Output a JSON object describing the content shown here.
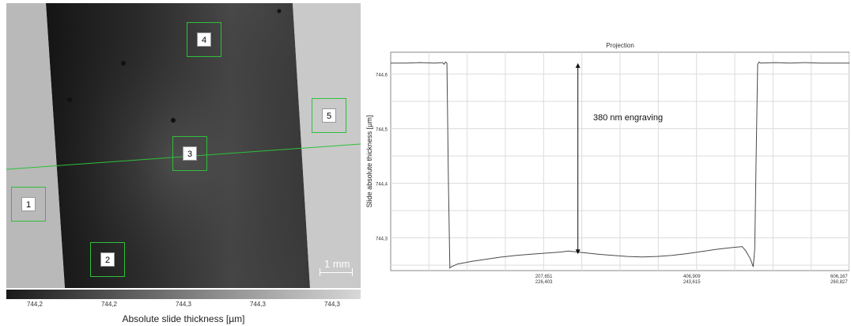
{
  "map": {
    "roi_labels": [
      "1",
      "2",
      "3",
      "4",
      "5"
    ],
    "scalebar_label": "1 mm",
    "colorbar_ticks": [
      "744,2",
      "744,2",
      "744,3",
      "744,3",
      "744,3"
    ],
    "colorbar_title": "Absolute slide thickness [µm]"
  },
  "chart_data": {
    "type": "line",
    "title": "Projection",
    "ylabel": "Slide absolute thickness [µm]",
    "xlabel": "",
    "y_ticks": [
      "744,6",
      "744,5",
      "744,4",
      "744,3"
    ],
    "x_ticks": [
      {
        "line1": "207,651",
        "line2": "226,403"
      },
      {
        "line1": "406,909",
        "line2": "243,615"
      },
      {
        "line1": "606,167",
        "line2": "260,827"
      }
    ],
    "annotation": "380 nm engraving",
    "ylim": [
      744.24,
      744.64
    ],
    "xlim": [
      0,
      620
    ],
    "series": [
      {
        "values": [
          [
            0,
            744.62
          ],
          [
            20,
            744.62
          ],
          [
            40,
            744.621
          ],
          [
            60,
            744.62
          ],
          [
            70,
            744.621
          ],
          [
            72,
            744.618
          ],
          [
            74,
            744.622
          ],
          [
            76,
            744.62
          ],
          [
            78,
            744.4
          ],
          [
            80,
            744.245
          ],
          [
            82,
            744.247
          ],
          [
            90,
            744.252
          ],
          [
            110,
            744.257
          ],
          [
            130,
            744.261
          ],
          [
            150,
            744.265
          ],
          [
            170,
            744.268
          ],
          [
            190,
            744.27
          ],
          [
            210,
            744.272
          ],
          [
            230,
            744.274
          ],
          [
            240,
            744.276
          ],
          [
            260,
            744.273
          ],
          [
            280,
            744.27
          ],
          [
            300,
            744.268
          ],
          [
            320,
            744.266
          ],
          [
            340,
            744.265
          ],
          [
            360,
            744.266
          ],
          [
            380,
            744.268
          ],
          [
            400,
            744.271
          ],
          [
            420,
            744.275
          ],
          [
            440,
            744.279
          ],
          [
            460,
            744.282
          ],
          [
            475,
            744.284
          ],
          [
            480,
            744.276
          ],
          [
            486,
            744.262
          ],
          [
            490,
            744.247
          ],
          [
            492,
            744.28
          ],
          [
            494,
            744.45
          ],
          [
            496,
            744.618
          ],
          [
            498,
            744.622
          ],
          [
            500,
            744.62
          ],
          [
            520,
            744.621
          ],
          [
            540,
            744.62
          ],
          [
            560,
            744.621
          ],
          [
            580,
            744.62
          ],
          [
            600,
            744.62
          ],
          [
            620,
            744.62
          ]
        ]
      }
    ],
    "arrow": {
      "x": 253,
      "y_top": 744.62,
      "y_bottom": 744.27
    },
    "grid": true
  }
}
